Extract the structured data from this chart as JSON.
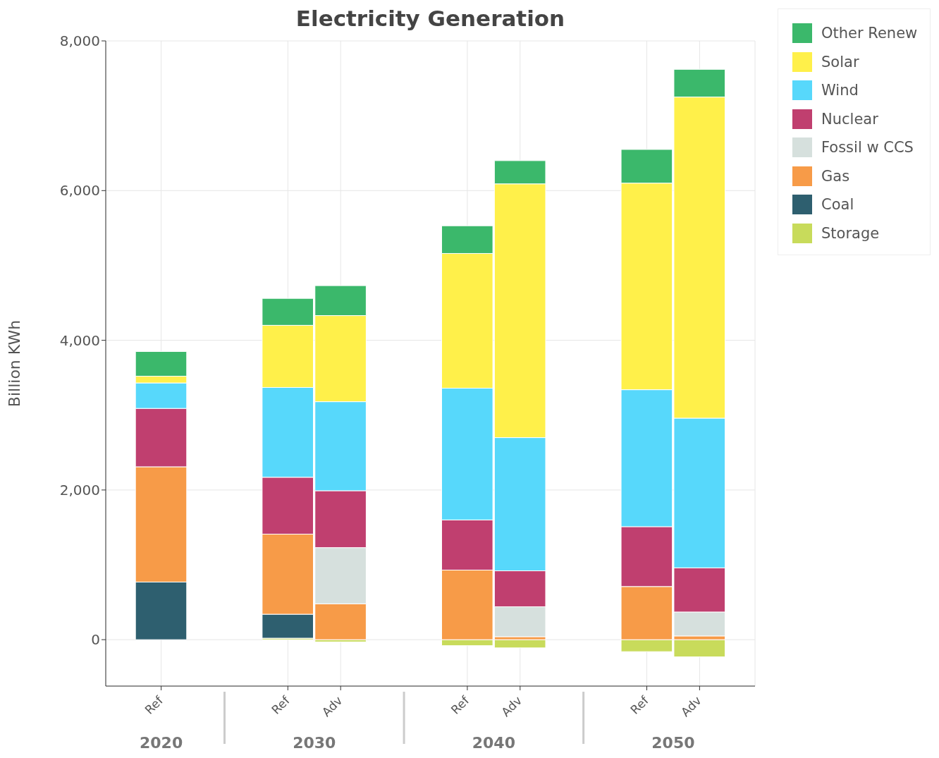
{
  "chart_data": {
    "type": "bar",
    "stacked": true,
    "title": "Electricity Generation",
    "ylabel": "Billion KWh",
    "categories": [
      "Ref",
      "Ref",
      "Adv",
      "Ref",
      "Adv",
      "Ref",
      "Adv"
    ],
    "annotations": [
      "2020",
      "2030",
      "2040",
      "2050"
    ],
    "series": [
      {
        "name": "Storage",
        "color": "#c8db5b",
        "values": [
          0,
          20,
          -30,
          -80,
          -110,
          -160,
          -230
        ]
      },
      {
        "name": "Coal",
        "color": "#2e5f6f",
        "values": [
          770,
          320,
          0,
          0,
          0,
          0,
          0
        ]
      },
      {
        "name": "Gas",
        "color": "#f79b48",
        "values": [
          1540,
          1070,
          480,
          930,
          40,
          710,
          50
        ]
      },
      {
        "name": "Fossil w CCS",
        "color": "#d6e0dd",
        "values": [
          0,
          0,
          750,
          0,
          400,
          0,
          320
        ]
      },
      {
        "name": "Nuclear",
        "color": "#c03f6f",
        "values": [
          780,
          760,
          760,
          670,
          480,
          800,
          590
        ]
      },
      {
        "name": "Wind",
        "color": "#57d8fb",
        "values": [
          340,
          1200,
          1190,
          1760,
          1780,
          1830,
          2000
        ]
      },
      {
        "name": "Solar",
        "color": "#fff04a",
        "values": [
          90,
          830,
          1150,
          1800,
          3390,
          2760,
          4290
        ]
      },
      {
        "name": "Other Renew",
        "color": "#3bb86b",
        "values": [
          330,
          360,
          400,
          370,
          310,
          450,
          370
        ]
      }
    ],
    "ylim": [
      -620,
      8000
    ],
    "yticks": [
      {
        "value": 0,
        "label": "0"
      },
      {
        "value": 2000,
        "label": "2,000"
      },
      {
        "value": 4000,
        "label": "4,000"
      },
      {
        "value": 6000,
        "label": "6,000"
      },
      {
        "value": 8000,
        "label": "8,000"
      }
    ],
    "grid": true,
    "legend": "top right"
  }
}
